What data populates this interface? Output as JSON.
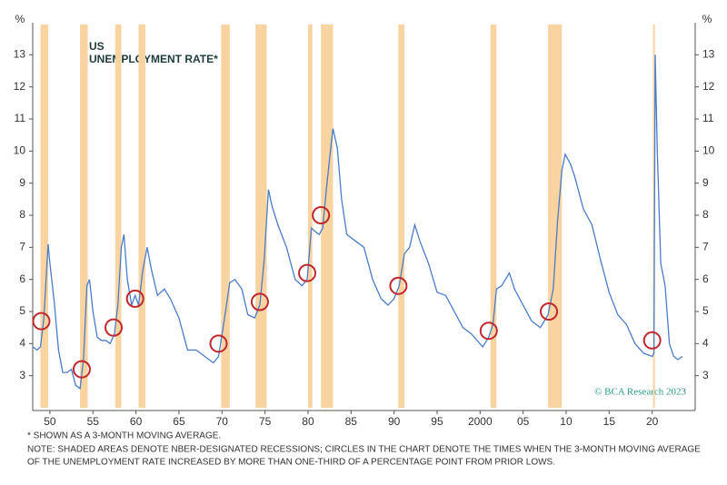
{
  "chart_data": {
    "type": "line",
    "title": "US",
    "subtitle": "UNEMPLOYMENT RATE*",
    "y_label": "%",
    "credit": "© BCA Research 2023",
    "notes": [
      "* SHOWN AS A 3-MONTH MOVING AVERAGE.",
      "NOTE: SHADED AREAS DENOTE NBER-DESIGNATED RECESSIONS; CIRCLES IN THE CHART DENOTE THE TIMES WHEN THE 3-MONTH MOVING AVERAGE",
      "OF THE UNEMPLOYMENT RATE INCREASED BY MORE THAN ONE-THIRD OF A PERCENTAGE POINT FROM PRIOR LOWS."
    ],
    "xlim": [
      1948,
      2025
    ],
    "ylim": [
      2,
      14
    ],
    "xticks": [
      {
        "value": 1950,
        "label": "50"
      },
      {
        "value": 1955,
        "label": "55"
      },
      {
        "value": 1960,
        "label": "60"
      },
      {
        "value": 1965,
        "label": "65"
      },
      {
        "value": 1970,
        "label": "70"
      },
      {
        "value": 1975,
        "label": "75"
      },
      {
        "value": 1980,
        "label": "80"
      },
      {
        "value": 1985,
        "label": "85"
      },
      {
        "value": 1990,
        "label": "90"
      },
      {
        "value": 1995,
        "label": "95"
      },
      2000,
      {
        "value": 2005,
        "label": "05"
      },
      {
        "value": 2010,
        "label": "10"
      },
      {
        "value": 2015,
        "label": "15"
      },
      {
        "value": 2020,
        "label": "20"
      }
    ],
    "yticks": [
      3,
      4,
      5,
      6,
      7,
      8,
      9,
      10,
      11,
      12,
      13
    ],
    "recession_color": "#f9d3a0",
    "recessions": [
      [
        1948.9,
        1949.8
      ],
      [
        1953.5,
        1954.4
      ],
      [
        1957.6,
        1958.3
      ],
      [
        1960.3,
        1961.1
      ],
      [
        1969.9,
        1970.9
      ],
      [
        1973.9,
        1975.2
      ],
      [
        1980.0,
        1980.5
      ],
      [
        1981.5,
        1982.9
      ],
      [
        1990.5,
        1991.2
      ],
      [
        2001.2,
        2001.9
      ],
      [
        2007.9,
        2009.5
      ],
      [
        2020.1,
        2020.3
      ]
    ],
    "circle_color": "#c0282d",
    "circles": {
      "x": [
        1949.0,
        1953.7,
        1957.4,
        1959.9,
        1969.6,
        1974.4,
        1979.9,
        1981.5,
        1990.5,
        2001.0,
        2008.0,
        2020.0
      ],
      "y": [
        4.7,
        3.2,
        4.5,
        5.4,
        4.0,
        5.3,
        6.2,
        8.0,
        5.8,
        4.4,
        5.0,
        4.1
      ]
    },
    "x": [
      1948.0,
      1948.5,
      1948.9,
      1949.3,
      1949.6,
      1949.8,
      1950.0,
      1950.5,
      1951.0,
      1951.5,
      1952.0,
      1952.5,
      1953.0,
      1953.5,
      1953.9,
      1954.3,
      1954.6,
      1955.0,
      1955.5,
      1956.0,
      1956.5,
      1957.0,
      1957.5,
      1957.9,
      1958.3,
      1958.6,
      1959.0,
      1959.5,
      1959.9,
      1960.3,
      1960.8,
      1961.3,
      1961.8,
      1962.5,
      1963.3,
      1964.0,
      1965.0,
      1966.0,
      1967.0,
      1968.0,
      1969.0,
      1969.6,
      1970.3,
      1970.9,
      1971.5,
      1972.3,
      1973.0,
      1973.8,
      1974.4,
      1974.9,
      1975.4,
      1975.8,
      1976.5,
      1977.5,
      1978.5,
      1979.3,
      1979.9,
      1980.4,
      1980.8,
      1981.3,
      1981.7,
      1982.2,
      1982.6,
      1982.9,
      1983.4,
      1983.9,
      1984.5,
      1985.5,
      1986.5,
      1987.5,
      1988.5,
      1989.3,
      1990.0,
      1990.6,
      1991.2,
      1991.8,
      1992.4,
      1993.0,
      1994.0,
      1995.0,
      1996.0,
      1997.0,
      1998.0,
      1999.0,
      2000.3,
      2001.0,
      2001.5,
      2001.9,
      2002.5,
      2003.4,
      2004.0,
      2005.0,
      2006.0,
      2007.0,
      2007.9,
      2008.5,
      2009.0,
      2009.5,
      2009.9,
      2010.5,
      2011.0,
      2012.0,
      2013.0,
      2014.0,
      2015.0,
      2016.0,
      2017.0,
      2018.0,
      2019.0,
      2020.0,
      2020.2,
      2020.35,
      2020.6,
      2021.0,
      2021.5,
      2022.0,
      2022.5,
      2023.0,
      2023.5
    ],
    "series": [
      {
        "name": "US unemployment rate",
        "color": "#4a7cc9",
        "values": [
          3.9,
          3.8,
          3.9,
          4.8,
          6.2,
          7.1,
          6.5,
          5.3,
          3.8,
          3.1,
          3.1,
          3.2,
          2.7,
          2.6,
          3.5,
          5.8,
          6.0,
          5.0,
          4.2,
          4.1,
          4.1,
          4.0,
          4.3,
          5.2,
          7.0,
          7.4,
          6.0,
          5.2,
          5.5,
          5.2,
          6.3,
          7.0,
          6.3,
          5.5,
          5.7,
          5.4,
          4.8,
          3.8,
          3.8,
          3.6,
          3.4,
          3.6,
          4.8,
          5.9,
          6.0,
          5.7,
          4.9,
          4.8,
          5.2,
          6.6,
          8.8,
          8.3,
          7.7,
          7.0,
          6.0,
          5.8,
          6.0,
          7.6,
          7.5,
          7.4,
          7.6,
          9.0,
          10.0,
          10.7,
          10.1,
          8.5,
          7.4,
          7.2,
          7.0,
          6.0,
          5.4,
          5.2,
          5.4,
          5.8,
          6.8,
          7.0,
          7.7,
          7.2,
          6.5,
          5.6,
          5.5,
          5.0,
          4.5,
          4.3,
          3.9,
          4.2,
          4.6,
          5.7,
          5.8,
          6.2,
          5.7,
          5.2,
          4.7,
          4.5,
          4.9,
          5.7,
          7.8,
          9.4,
          9.9,
          9.6,
          9.2,
          8.2,
          7.7,
          6.6,
          5.6,
          4.9,
          4.6,
          4.0,
          3.7,
          3.6,
          3.7,
          13.0,
          10.0,
          6.5,
          5.8,
          4.0,
          3.6,
          3.5,
          3.6
        ]
      }
    ]
  }
}
